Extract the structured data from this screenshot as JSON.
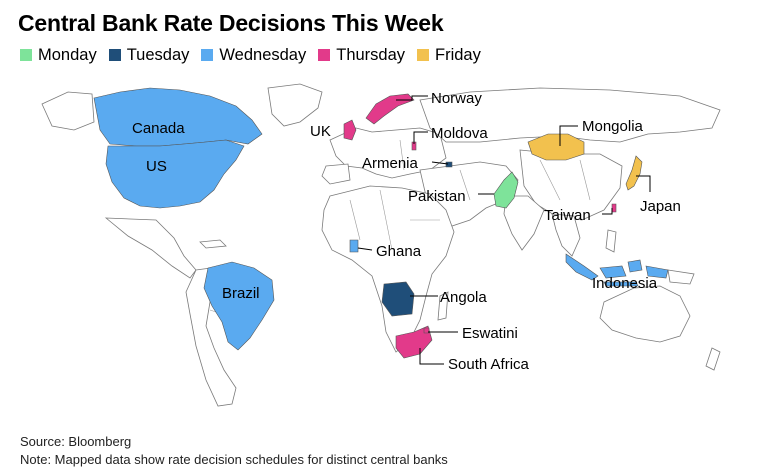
{
  "title": "Central Bank Rate Decisions This Week",
  "legend": [
    {
      "label": "Monday",
      "color": "#7ee39a"
    },
    {
      "label": "Tuesday",
      "color": "#1f4e79"
    },
    {
      "label": "Wednesday",
      "color": "#5aaaf0"
    },
    {
      "label": "Thursday",
      "color": "#e23a8a"
    },
    {
      "label": "Friday",
      "color": "#f2c14e"
    }
  ],
  "countries": [
    {
      "name": "Canada",
      "day": "Wednesday"
    },
    {
      "name": "US",
      "day": "Wednesday"
    },
    {
      "name": "Brazil",
      "day": "Wednesday"
    },
    {
      "name": "UK",
      "day": "Thursday"
    },
    {
      "name": "Norway",
      "day": "Thursday"
    },
    {
      "name": "Moldova",
      "day": "Thursday"
    },
    {
      "name": "Armenia",
      "day": "Tuesday"
    },
    {
      "name": "Pakistan",
      "day": "Monday"
    },
    {
      "name": "Mongolia",
      "day": "Friday"
    },
    {
      "name": "Japan",
      "day": "Friday"
    },
    {
      "name": "Taiwan",
      "day": "Thursday"
    },
    {
      "name": "Ghana",
      "day": "Wednesday"
    },
    {
      "name": "Angola",
      "day": "Tuesday"
    },
    {
      "name": "Indonesia",
      "day": "Wednesday"
    },
    {
      "name": "Eswatini",
      "day": "Thursday"
    },
    {
      "name": "South Africa",
      "day": "Thursday"
    }
  ],
  "source": "Source: Bloomberg",
  "note": "Note: Mapped data show rate decision schedules for distinct central banks"
}
